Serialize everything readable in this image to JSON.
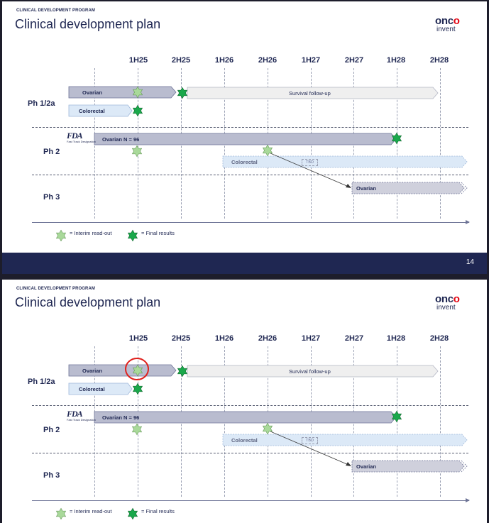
{
  "slides": [
    {
      "kicker": "CLINICAL DEVELOPMENT PROGRAM",
      "title": "Clinical development plan",
      "logo": {
        "line1_a": "onc",
        "line1_b": "o",
        "line2": "invent"
      },
      "page_number": "14"
    },
    {
      "kicker": "CLINICAL DEVELOPMENT PROGRAM",
      "title": "Clinical development plan",
      "logo": {
        "line1_a": "onc",
        "line1_b": "o",
        "line2": "invent"
      }
    }
  ],
  "timeline": {
    "headers": [
      "1H25",
      "2H25",
      "1H26",
      "2H26",
      "1H27",
      "2H27",
      "1H28",
      "2H28"
    ],
    "phases": [
      "Ph 1/2a",
      "Ph 2",
      "Ph 3"
    ],
    "bars": {
      "ph1_ovarian": "Ovarian",
      "ph1_followup": "Survival follow-up",
      "ph1_colorectal": "Colorectal",
      "ph2_ovarian": "Ovarian N = 96",
      "ph2_colorectal": "Colorectal",
      "ph2_tbd": "TBD",
      "ph3_ovarian": "Ovarian"
    },
    "fda": {
      "logo": "FDA",
      "caption": "Fast Track Designation"
    },
    "legend": {
      "interim": "= Interim read-out",
      "final": "= Final results"
    }
  },
  "colors": {
    "navy": "#1f2752",
    "interim_star": "#a9d99a",
    "final_star": "#1aa84b",
    "highlight_circle": "#e0201c"
  }
}
